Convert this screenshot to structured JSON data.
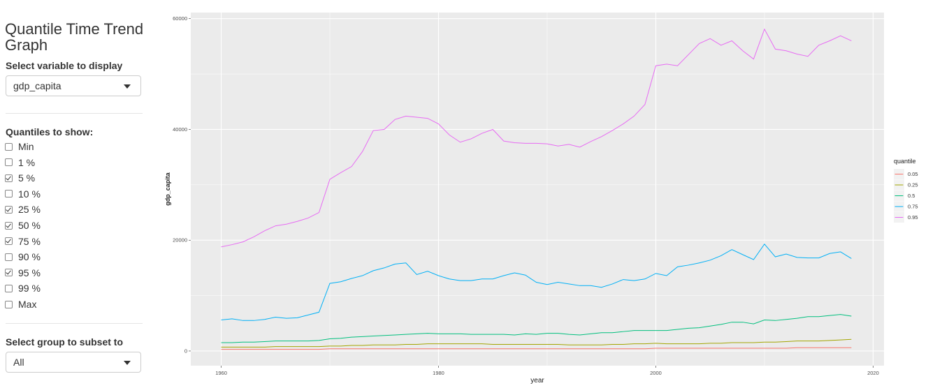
{
  "sidebar": {
    "title": "Quantile Time Trend Graph",
    "variable_label": "Select variable to display",
    "variable_value": "gdp_capita",
    "quantiles_label": "Quantiles to show:",
    "quantiles": [
      {
        "label": "Min",
        "checked": false
      },
      {
        "label": "1 %",
        "checked": false
      },
      {
        "label": "5 %",
        "checked": true
      },
      {
        "label": "10 %",
        "checked": false
      },
      {
        "label": "25 %",
        "checked": true
      },
      {
        "label": "50 %",
        "checked": true
      },
      {
        "label": "75 %",
        "checked": true
      },
      {
        "label": "90 %",
        "checked": false
      },
      {
        "label": "95 %",
        "checked": true
      },
      {
        "label": "99 %",
        "checked": false
      },
      {
        "label": "Max",
        "checked": false
      }
    ],
    "group_label": "Select group to subset to",
    "group_value": "All"
  },
  "chart_data": {
    "type": "line",
    "x_label": "year",
    "y_label": "gdp_capita",
    "legend_title": "quantile",
    "legend_position": "right",
    "grid": true,
    "x": [
      1960,
      1961,
      1962,
      1963,
      1964,
      1965,
      1966,
      1967,
      1968,
      1969,
      1970,
      1971,
      1972,
      1973,
      1974,
      1975,
      1976,
      1977,
      1978,
      1979,
      1980,
      1981,
      1982,
      1983,
      1984,
      1985,
      1986,
      1987,
      1988,
      1989,
      1990,
      1991,
      1992,
      1993,
      1994,
      1995,
      1996,
      1997,
      1998,
      1999,
      2000,
      2001,
      2002,
      2003,
      2004,
      2005,
      2006,
      2007,
      2008,
      2009,
      2010,
      2011,
      2012,
      2013,
      2014,
      2015,
      2016,
      2017,
      2018
    ],
    "xlim": [
      1957.2,
      2021.0
    ],
    "xticks": [
      1960,
      1980,
      2000,
      2020
    ],
    "x_minor": [
      1970,
      1990,
      2010
    ],
    "ylim": [
      -2650,
      61100
    ],
    "yticks": [
      0,
      20000,
      40000,
      60000
    ],
    "y_minor": [
      10000,
      30000,
      50000
    ],
    "series": [
      {
        "name": "0.05",
        "color": "#F8766D",
        "values": [
          300,
          300,
          300,
          300,
          300,
          300,
          300,
          300,
          300,
          300,
          400,
          400,
          400,
          400,
          400,
          400,
          400,
          400,
          400,
          400,
          400,
          400,
          400,
          400,
          400,
          400,
          400,
          400,
          400,
          400,
          400,
          400,
          400,
          400,
          400,
          400,
          400,
          400,
          400,
          400,
          500,
          500,
          500,
          500,
          500,
          500,
          500,
          500,
          500,
          500,
          500,
          500,
          500,
          600,
          600,
          600,
          600,
          600,
          600
        ]
      },
      {
        "name": "0.25",
        "color": "#A3A500",
        "values": [
          700,
          700,
          700,
          700,
          700,
          800,
          800,
          800,
          800,
          800,
          900,
          900,
          1000,
          1000,
          1100,
          1100,
          1100,
          1200,
          1200,
          1300,
          1300,
          1300,
          1300,
          1300,
          1300,
          1200,
          1200,
          1200,
          1200,
          1200,
          1200,
          1200,
          1100,
          1100,
          1100,
          1100,
          1200,
          1200,
          1300,
          1300,
          1400,
          1300,
          1300,
          1300,
          1300,
          1400,
          1400,
          1500,
          1500,
          1500,
          1600,
          1600,
          1700,
          1800,
          1800,
          1800,
          1900,
          2000,
          2100
        ]
      },
      {
        "name": "0.5",
        "color": "#00BF7D",
        "values": [
          1500,
          1500,
          1600,
          1600,
          1700,
          1800,
          1800,
          1800,
          1800,
          1900,
          2200,
          2300,
          2500,
          2600,
          2700,
          2800,
          2900,
          3000,
          3100,
          3200,
          3100,
          3100,
          3100,
          3000,
          3000,
          3000,
          3000,
          2900,
          3100,
          3000,
          3200,
          3200,
          3000,
          2900,
          3100,
          3300,
          3300,
          3500,
          3700,
          3700,
          3700,
          3700,
          3900,
          4100,
          4200,
          4500,
          4800,
          5200,
          5200,
          4900,
          5600,
          5500,
          5700,
          5900,
          6200,
          6200,
          6400,
          6600,
          6300
        ]
      },
      {
        "name": "0.75",
        "color": "#00B0F6",
        "values": [
          5600,
          5800,
          5500,
          5500,
          5700,
          6100,
          5900,
          6000,
          6500,
          7000,
          12200,
          12500,
          13100,
          13600,
          14500,
          15000,
          15700,
          15900,
          13800,
          14400,
          13600,
          13000,
          12700,
          12700,
          13000,
          13000,
          13600,
          14100,
          13700,
          12400,
          12000,
          12400,
          12100,
          11800,
          11800,
          11500,
          12100,
          12900,
          12700,
          13000,
          14000,
          13600,
          15200,
          15500,
          15900,
          16400,
          17200,
          18300,
          17400,
          16500,
          19300,
          17000,
          17500,
          16900,
          16800,
          16800,
          17600,
          17900,
          16700
        ]
      },
      {
        "name": "0.95",
        "color": "#E76BF3",
        "values": [
          18800,
          19200,
          19700,
          20600,
          21700,
          22600,
          22900,
          23400,
          24000,
          25000,
          31000,
          32200,
          33300,
          36000,
          39800,
          40000,
          41800,
          42400,
          42200,
          42000,
          41000,
          39000,
          37700,
          38300,
          39300,
          40000,
          37900,
          37600,
          37500,
          37500,
          37400,
          37000,
          37300,
          36800,
          37800,
          38700,
          39800,
          41000,
          42400,
          44500,
          51500,
          51800,
          51500,
          53500,
          55500,
          56400,
          55200,
          56000,
          54200,
          52700,
          58100,
          54500,
          54200,
          53600,
          53200,
          55200,
          56000,
          56900,
          56000
        ]
      }
    ]
  }
}
